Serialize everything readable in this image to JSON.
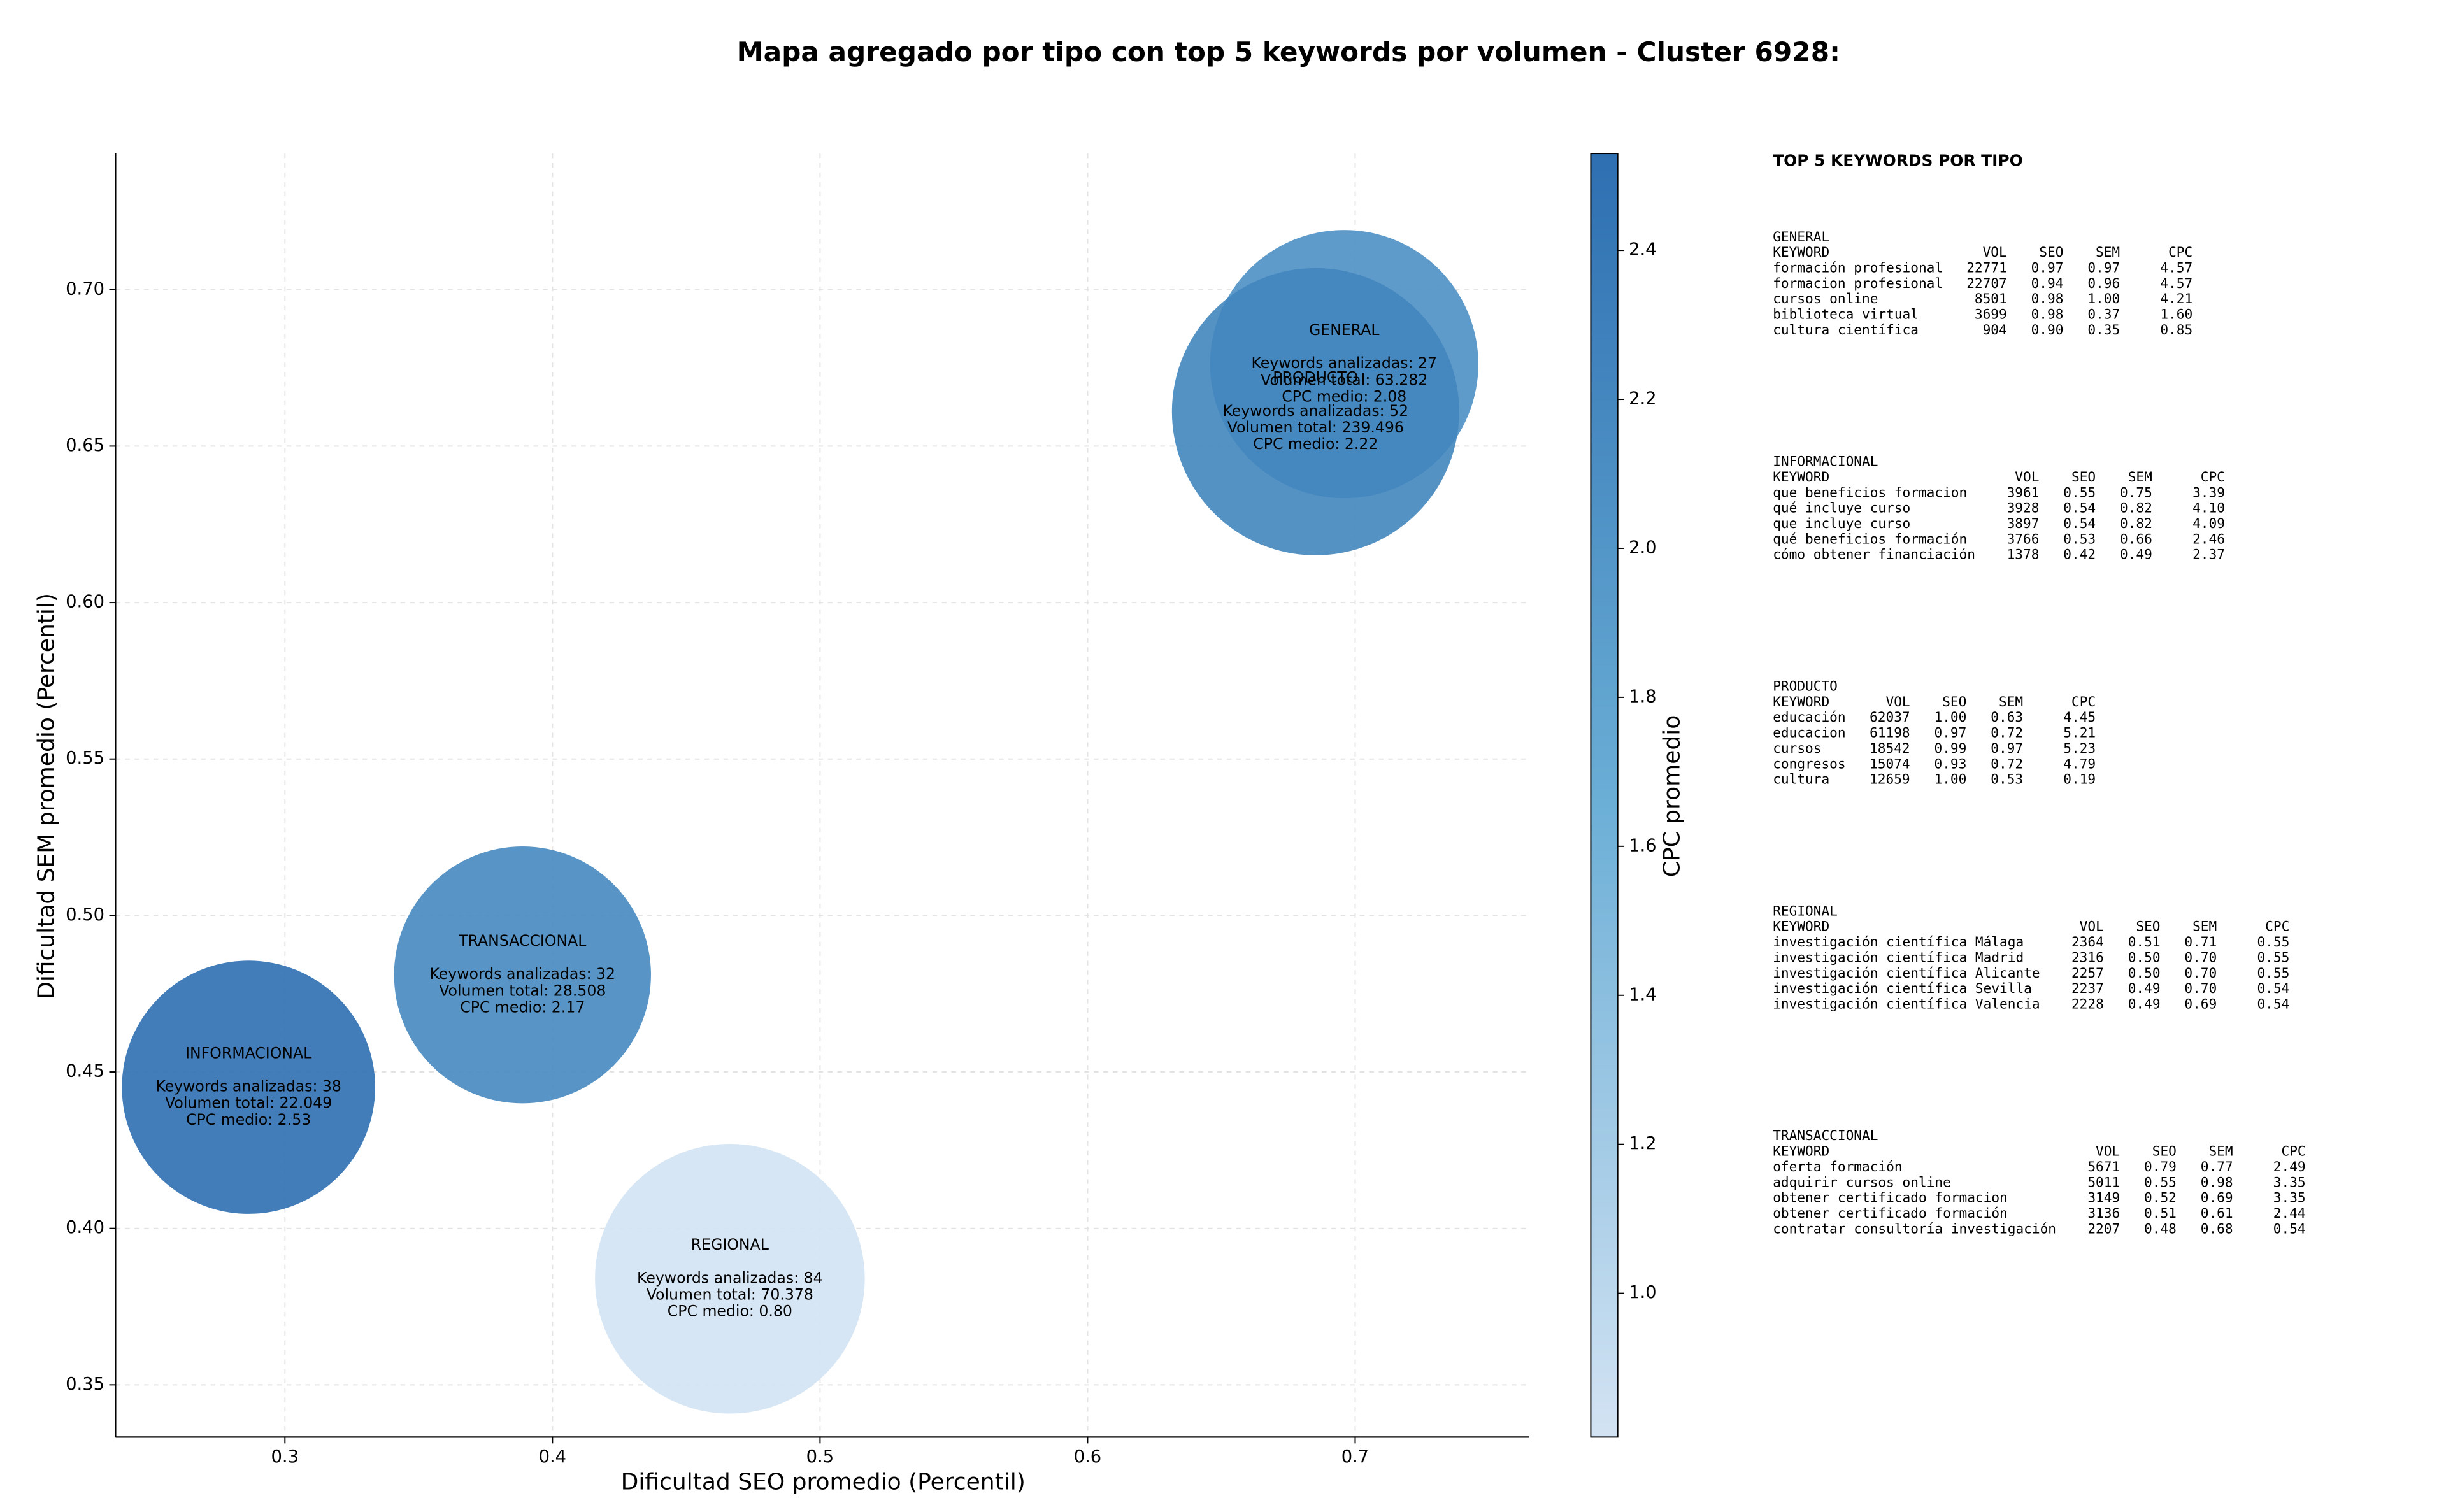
{
  "chart_data": {
    "type": "bubble",
    "title": "Mapa agregado por tipo con top 5 keywords por volumen - Cluster 6928:",
    "x_label": "Dificultad SEO promedio (Percentil)",
    "y_label": "Dificultad SEM promedio (Percentil)",
    "colorbar_label": "CPC promedio",
    "categories": [
      "GENERAL",
      "INFORMACIONAL",
      "PRODUCTO",
      "REGIONAL",
      "TRANSACCIONAL"
    ],
    "x": [
      0.6959,
      0.2864,
      0.6852,
      0.4663,
      0.3888
    ],
    "values": [
      0.6762,
      0.4451,
      0.661,
      0.3839,
      0.481
    ],
    "sizes": [
      63282,
      22049,
      239496,
      70378,
      28508
    ],
    "cpc": [
      2.08,
      2.53,
      2.22,
      0.8,
      2.17
    ],
    "annotations": [
      [
        "Keywords analizadas: 27",
        "Volumen total: 63.282",
        "CPC medio: 2.08"
      ],
      [
        "Keywords analizadas: 38",
        "Volumen total: 22.049",
        "CPC medio: 2.53"
      ],
      [
        "Keywords analizadas: 52",
        "Volumen total: 239.496",
        "CPC medio: 2.22"
      ],
      [
        "Keywords analizadas: 84",
        "Volumen total: 70.378",
        "CPC medio: 0.80"
      ],
      [
        "Keywords analizadas: 32",
        "Volumen total: 28.508",
        "CPC medio: 2.17"
      ]
    ],
    "xlim": [
      0.2367,
      0.765
    ],
    "ylim": [
      0.3333,
      0.7435
    ],
    "xticks": [
      0.3,
      0.4,
      0.5,
      0.6,
      0.7
    ],
    "yticks": [
      0.35,
      {
        "value": 0.4,
        "label": "0.40"
      },
      0.45,
      {
        "value": 0.5,
        "label": "0.50"
      },
      0.55,
      {
        "value": 0.6,
        "label": "0.60"
      },
      0.65,
      {
        "value": 0.7,
        "label": "0.70"
      }
    ],
    "clim": [
      0.807,
      2.53
    ],
    "cticks": [
      {
        "value": 1.0,
        "label": "1.0"
      },
      1.2,
      1.4,
      1.6,
      1.8,
      {
        "value": 2.0,
        "label": "2.0"
      },
      2.2,
      2.4
    ],
    "colormap": [
      "#d3e3f3",
      "#6aaed6",
      "#2d6fb1"
    ],
    "grid": true
  },
  "side_panel": {
    "title": "TOP 5 KEYWORDS POR TIPO",
    "groups": [
      {
        "name": "GENERAL",
        "header": [
          "KEYWORD",
          "VOL",
          "SEO",
          "SEM",
          "CPC"
        ],
        "rows": [
          [
            "formación profesional",
            "22771",
            "0.97",
            "0.97",
            "4.57"
          ],
          [
            "formacion profesional",
            "22707",
            "0.94",
            "0.96",
            "4.57"
          ],
          [
            "cursos online",
            "8501",
            "0.98",
            "1.00",
            "4.21"
          ],
          [
            "biblioteca virtual",
            "3699",
            "0.98",
            "0.37",
            "1.60"
          ],
          [
            "cultura científica",
            "904",
            "0.90",
            "0.35",
            "0.85"
          ]
        ]
      },
      {
        "name": "INFORMACIONAL",
        "header": [
          "KEYWORD",
          "VOL",
          "SEO",
          "SEM",
          "CPC"
        ],
        "rows": [
          [
            "que beneficios formacion",
            "3961",
            "0.55",
            "0.75",
            "3.39"
          ],
          [
            "qué incluye curso",
            "3928",
            "0.54",
            "0.82",
            "4.10"
          ],
          [
            "que incluye curso",
            "3897",
            "0.54",
            "0.82",
            "4.09"
          ],
          [
            "qué beneficios formación",
            "3766",
            "0.53",
            "0.66",
            "2.46"
          ],
          [
            "cómo obtener financiación",
            "1378",
            "0.42",
            "0.49",
            "2.37"
          ]
        ]
      },
      {
        "name": "PRODUCTO",
        "header": [
          "KEYWORD",
          "VOL",
          "SEO",
          "SEM",
          "CPC"
        ],
        "rows": [
          [
            "educación",
            "62037",
            "1.00",
            "0.63",
            "4.45"
          ],
          [
            "educacion",
            "61198",
            "0.97",
            "0.72",
            "5.21"
          ],
          [
            "cursos",
            "18542",
            "0.99",
            "0.97",
            "5.23"
          ],
          [
            "congresos",
            "15074",
            "0.93",
            "0.72",
            "4.79"
          ],
          [
            "cultura",
            "12659",
            "1.00",
            "0.53",
            "0.19"
          ]
        ]
      },
      {
        "name": "REGIONAL",
        "header": [
          "KEYWORD",
          "VOL",
          "SEO",
          "SEM",
          "CPC"
        ],
        "rows": [
          [
            "investigación científica Málaga",
            "2364",
            "0.51",
            "0.71",
            "0.55"
          ],
          [
            "investigación científica Madrid",
            "2316",
            "0.50",
            "0.70",
            "0.55"
          ],
          [
            "investigación científica Alicante",
            "2257",
            "0.50",
            "0.70",
            "0.55"
          ],
          [
            "investigación científica Sevilla",
            "2237",
            "0.49",
            "0.70",
            "0.54"
          ],
          [
            "investigación científica Valencia",
            "2228",
            "0.49",
            "0.69",
            "0.54"
          ]
        ]
      },
      {
        "name": "TRANSACCIONAL",
        "header": [
          "KEYWORD",
          "VOL",
          "SEO",
          "SEM",
          "CPC"
        ],
        "rows": [
          [
            "oferta formación",
            "5671",
            "0.79",
            "0.77",
            "2.49"
          ],
          [
            "adquirir cursos online",
            "5011",
            "0.55",
            "0.98",
            "3.35"
          ],
          [
            "obtener certificado formacion",
            "3149",
            "0.52",
            "0.69",
            "3.35"
          ],
          [
            "obtener certificado formación",
            "3136",
            "0.51",
            "0.61",
            "2.44"
          ],
          [
            "contratar consultoría investigación",
            "2207",
            "0.48",
            "0.68",
            "0.54"
          ]
        ]
      }
    ]
  }
}
